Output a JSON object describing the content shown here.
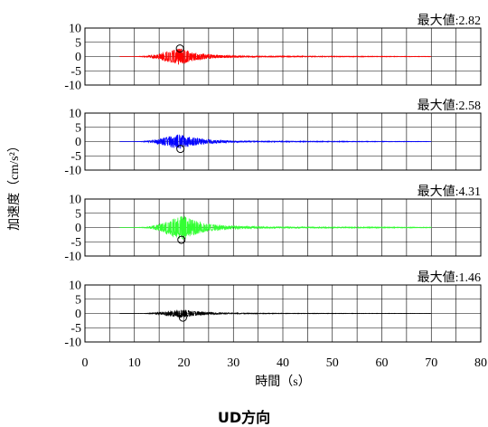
{
  "chart_data": {
    "type": "line",
    "ylabel": "加速度（cm/s²）",
    "xlabel": "時間（s）",
    "caption": "UD方向",
    "xlim": [
      0,
      80
    ],
    "xticks": [
      "0",
      "10",
      "20",
      "30",
      "40",
      "50",
      "60",
      "70",
      "80"
    ],
    "ylim": [
      -10,
      10
    ],
    "yticks": [
      "10",
      "5",
      "0",
      "-5",
      "-10"
    ],
    "grid": true,
    "panels": [
      {
        "peak_label": "最大値:2.82",
        "color": "#ff0000",
        "peak_marker": {
          "x": 19.2,
          "y": 2.82
        },
        "signal": {
          "start": 7.0,
          "end": 70.0,
          "center": 19.5,
          "amplitude": 2.82
        }
      },
      {
        "peak_label": "最大値:2.58",
        "color": "#0000ff",
        "peak_marker": {
          "x": 19.3,
          "y": -2.58
        },
        "signal": {
          "start": 7.0,
          "end": 70.0,
          "center": 19.5,
          "amplitude": 2.58
        }
      },
      {
        "peak_label": "最大値:4.31",
        "color": "#33ff33",
        "peak_marker": {
          "x": 19.5,
          "y": -4.31
        },
        "signal": {
          "start": 7.0,
          "end": 70.0,
          "center": 20.0,
          "amplitude": 4.31
        }
      },
      {
        "peak_label": "最大値:1.46",
        "color": "#000000",
        "peak_marker": {
          "x": 19.8,
          "y": -1.46
        },
        "signal": {
          "start": 7.0,
          "end": 70.0,
          "center": 20.0,
          "amplitude": 1.46
        }
      }
    ]
  }
}
